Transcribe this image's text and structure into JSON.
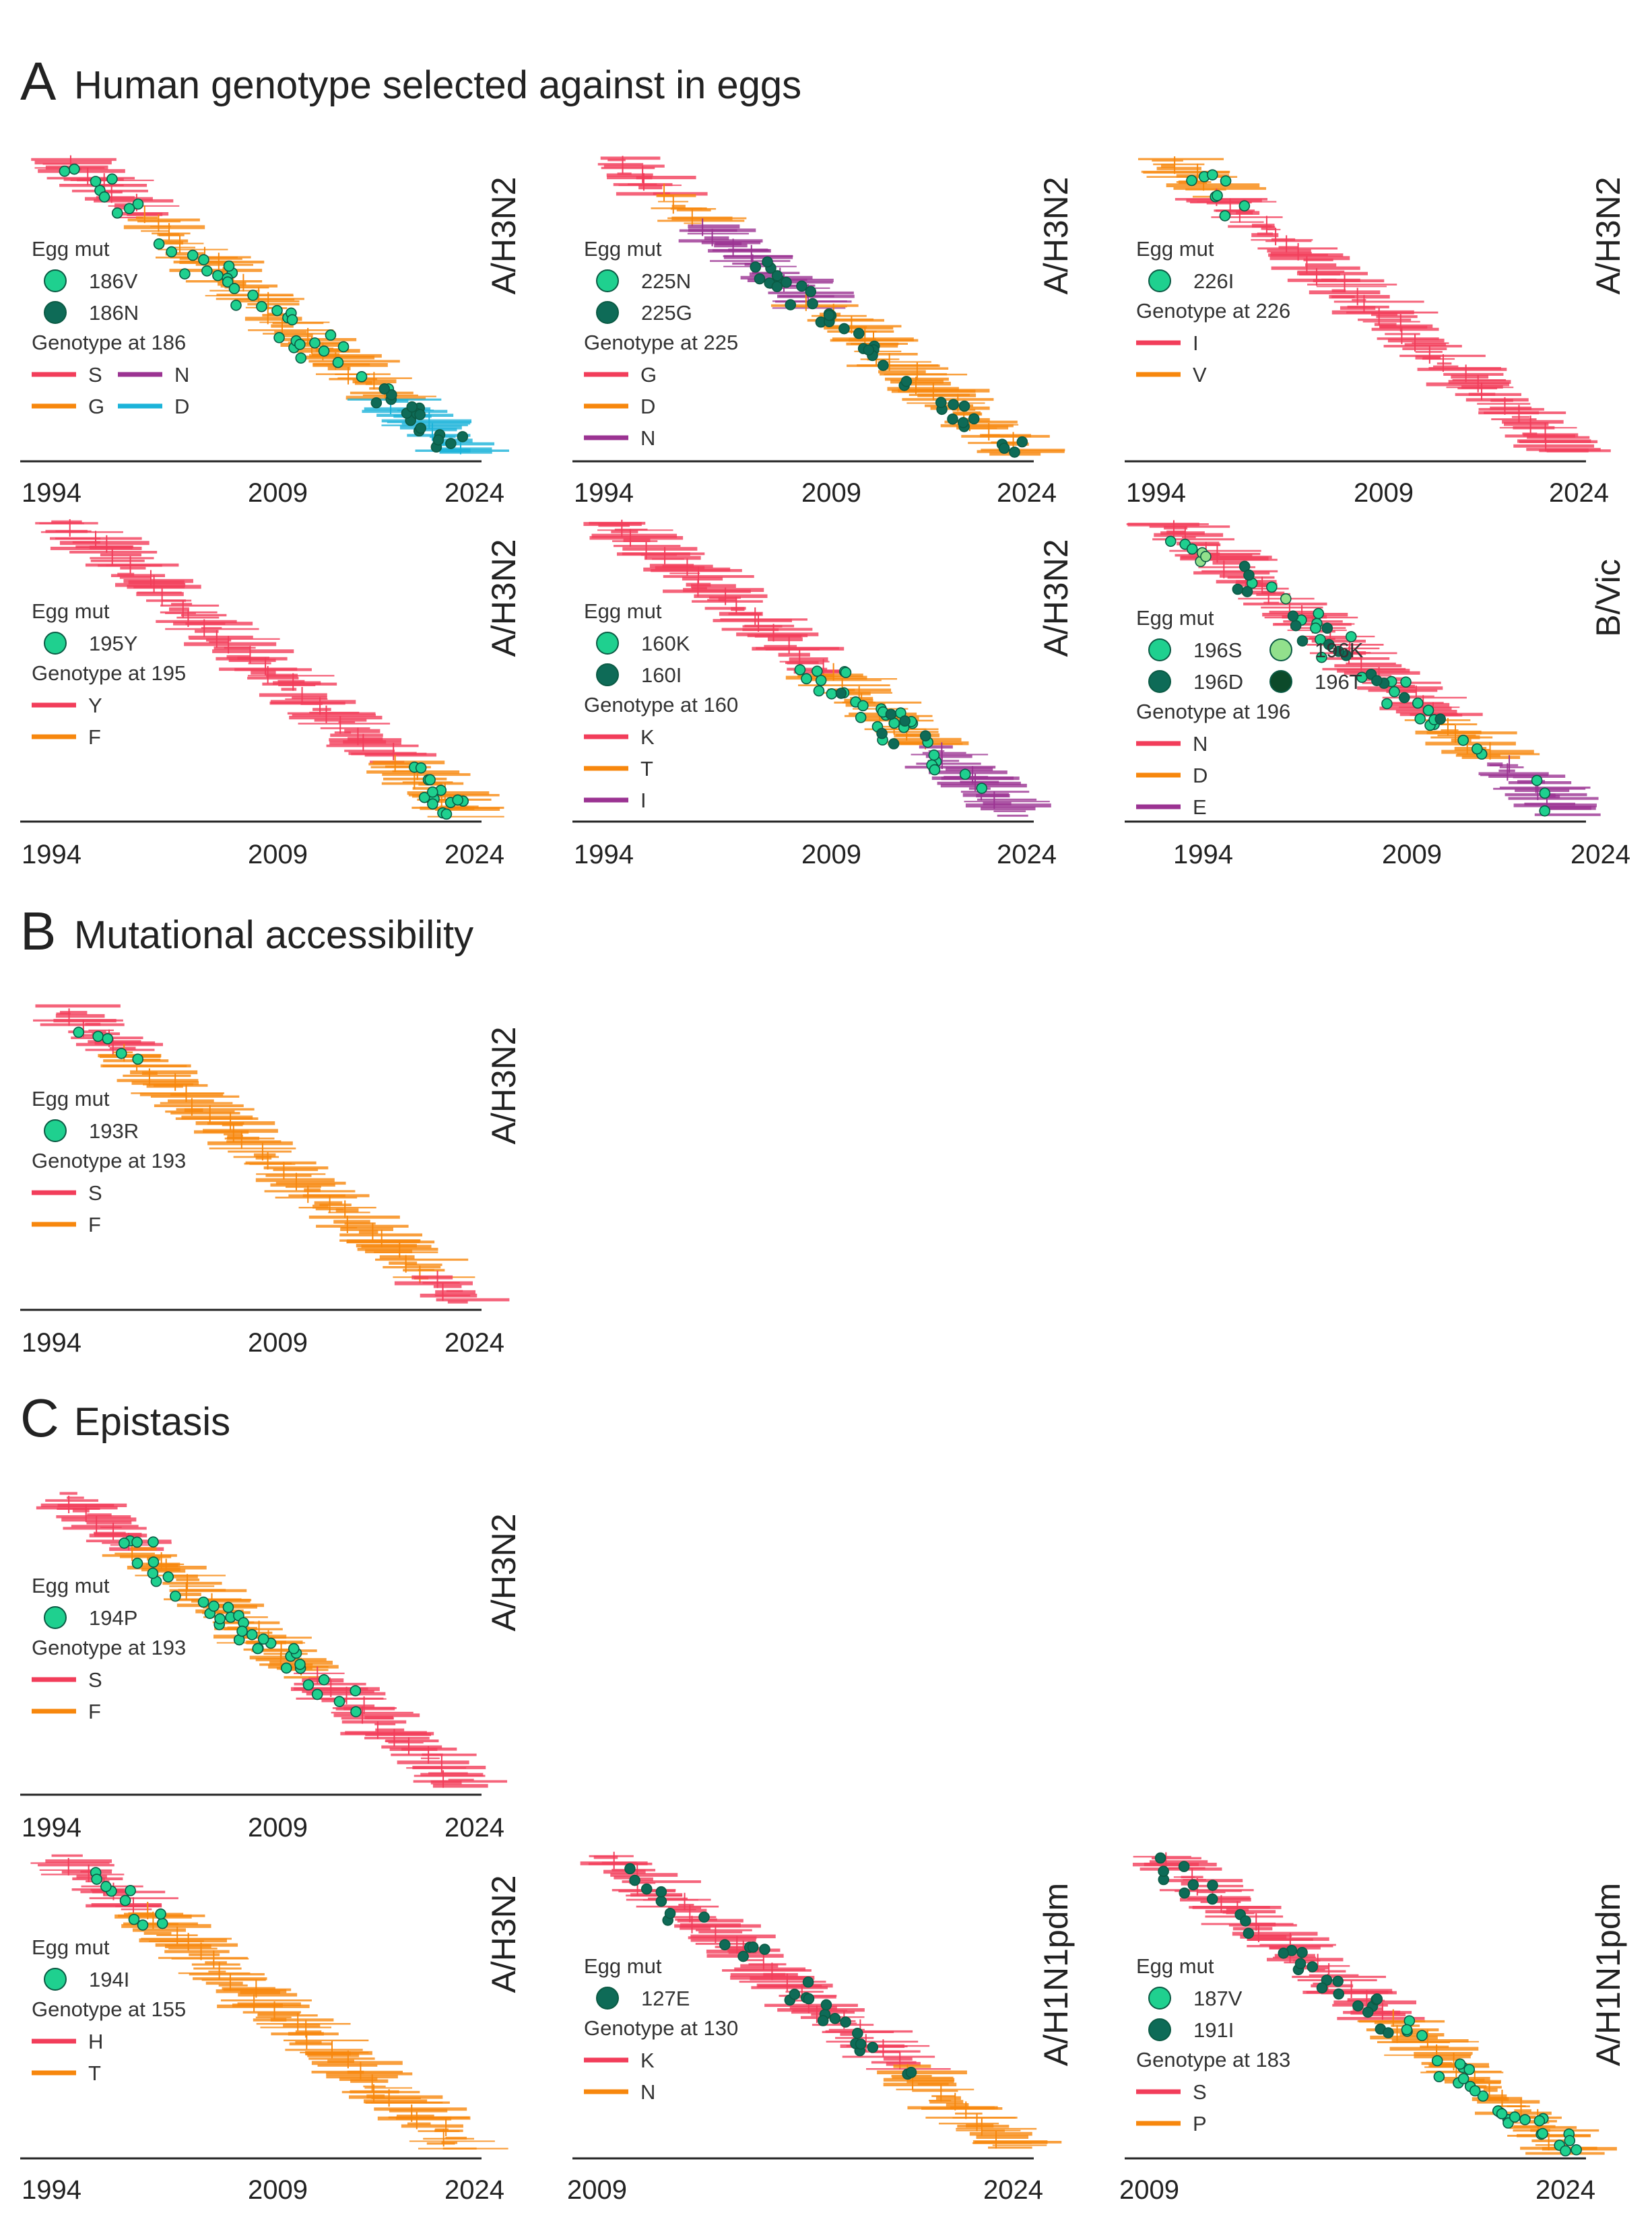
{
  "sections": [
    {
      "letter": "A",
      "title": "Human genotype selected against in eggs"
    },
    {
      "letter": "B",
      "title": "Mutational accessibility"
    },
    {
      "letter": "C",
      "title": "Epistasis"
    }
  ],
  "legend_heading": "Egg mut",
  "colors": {
    "red": "#f23d5a",
    "orange": "#f7870d",
    "purple": "#9b3392",
    "cyan": "#1bb3d9",
    "green": "#1fd08f",
    "dark_green": "#0e6b57",
    "light_green": "#92e08c",
    "darkest_green": "#0c4a2a"
  },
  "chart_data": [
    {
      "id": "A1",
      "type": "scatter",
      "subtype": "A/H3N2",
      "x_ticks": [
        "1994",
        "2009",
        "2024"
      ],
      "egg_muts": [
        {
          "label": "186V",
          "color": "green"
        },
        {
          "label": "186N",
          "color": "dark_green"
        }
      ],
      "genotype_title": "Genotype at 186",
      "genotypes": [
        {
          "label": "S",
          "color": "red"
        },
        {
          "label": "N",
          "color": "purple"
        },
        {
          "label": "G",
          "color": "orange"
        },
        {
          "label": "D",
          "color": "cyan"
        }
      ]
    },
    {
      "id": "A2",
      "type": "scatter",
      "subtype": "A/H3N2",
      "x_ticks": [
        "1994",
        "2009",
        "2024"
      ],
      "egg_muts": [
        {
          "label": "225N",
          "color": "green"
        },
        {
          "label": "225G",
          "color": "dark_green"
        }
      ],
      "genotype_title": "Genotype at 225",
      "genotypes": [
        {
          "label": "G",
          "color": "red"
        },
        {
          "label": "D",
          "color": "orange"
        },
        {
          "label": "N",
          "color": "purple"
        }
      ]
    },
    {
      "id": "A3",
      "type": "scatter",
      "subtype": "A/H3N2",
      "x_ticks": [
        "1994",
        "2009",
        "2024"
      ],
      "egg_muts": [
        {
          "label": "226I",
          "color": "green"
        }
      ],
      "genotype_title": "Genotype at 226",
      "genotypes": [
        {
          "label": "I",
          "color": "red"
        },
        {
          "label": "V",
          "color": "orange"
        }
      ]
    },
    {
      "id": "A4",
      "type": "scatter",
      "subtype": "A/H3N2",
      "x_ticks": [
        "1994",
        "2009",
        "2024"
      ],
      "egg_muts": [
        {
          "label": "195Y",
          "color": "green"
        }
      ],
      "genotype_title": "Genotype at 195",
      "genotypes": [
        {
          "label": "Y",
          "color": "red"
        },
        {
          "label": "F",
          "color": "orange"
        }
      ]
    },
    {
      "id": "A5",
      "type": "scatter",
      "subtype": "A/H3N2",
      "x_ticks": [
        "1994",
        "2009",
        "2024"
      ],
      "egg_muts": [
        {
          "label": "160K",
          "color": "green"
        },
        {
          "label": "160I",
          "color": "dark_green"
        }
      ],
      "genotype_title": "Genotype at 160",
      "genotypes": [
        {
          "label": "K",
          "color": "red"
        },
        {
          "label": "T",
          "color": "orange"
        },
        {
          "label": "I",
          "color": "purple"
        }
      ]
    },
    {
      "id": "A6",
      "type": "scatter",
      "subtype": "B/Vic",
      "x_ticks": [
        "1994",
        "2009",
        "2024"
      ],
      "egg_muts": [
        {
          "label": "196S",
          "color": "green"
        },
        {
          "label": "196K",
          "color": "light_green"
        },
        {
          "label": "196D",
          "color": "dark_green"
        },
        {
          "label": "196T",
          "color": "darkest_green"
        }
      ],
      "genotype_title": "Genotype at 196",
      "genotypes": [
        {
          "label": "N",
          "color": "red"
        },
        {
          "label": "D",
          "color": "orange"
        },
        {
          "label": "E",
          "color": "purple"
        }
      ]
    },
    {
      "id": "B1",
      "type": "scatter",
      "subtype": "A/H3N2",
      "x_ticks": [
        "1994",
        "2009",
        "2024"
      ],
      "egg_muts": [
        {
          "label": "193R",
          "color": "green"
        }
      ],
      "genotype_title": "Genotype at 193",
      "genotypes": [
        {
          "label": "S",
          "color": "red"
        },
        {
          "label": "F",
          "color": "orange"
        }
      ]
    },
    {
      "id": "C1",
      "type": "scatter",
      "subtype": "A/H3N2",
      "x_ticks": [
        "1994",
        "2009",
        "2024"
      ],
      "egg_muts": [
        {
          "label": "194P",
          "color": "green"
        }
      ],
      "genotype_title": "Genotype at 193",
      "genotypes": [
        {
          "label": "S",
          "color": "red"
        },
        {
          "label": "F",
          "color": "orange"
        }
      ]
    },
    {
      "id": "C2",
      "type": "scatter",
      "subtype": "A/H3N2",
      "x_ticks": [
        "1994",
        "2009",
        "2024"
      ],
      "egg_muts": [
        {
          "label": "194I",
          "color": "green"
        }
      ],
      "genotype_title": "Genotype at 155",
      "genotypes": [
        {
          "label": "H",
          "color": "red"
        },
        {
          "label": "T",
          "color": "orange"
        }
      ]
    },
    {
      "id": "C3",
      "type": "scatter",
      "subtype": "A/H1N1pdm",
      "x_ticks": [
        "2009",
        "2024"
      ],
      "egg_muts": [
        {
          "label": "127E",
          "color": "dark_green"
        }
      ],
      "genotype_title": "Genotype at 130",
      "genotypes": [
        {
          "label": "K",
          "color": "red"
        },
        {
          "label": "N",
          "color": "orange"
        }
      ]
    },
    {
      "id": "C4",
      "type": "scatter",
      "subtype": "A/H1N1pdm",
      "x_ticks": [
        "2009",
        "2024"
      ],
      "egg_muts": [
        {
          "label": "187V",
          "color": "green"
        },
        {
          "label": "191I",
          "color": "dark_green"
        }
      ],
      "genotype_title": "Genotype at 183",
      "genotypes": [
        {
          "label": "S",
          "color": "red"
        },
        {
          "label": "P",
          "color": "orange"
        }
      ]
    }
  ]
}
